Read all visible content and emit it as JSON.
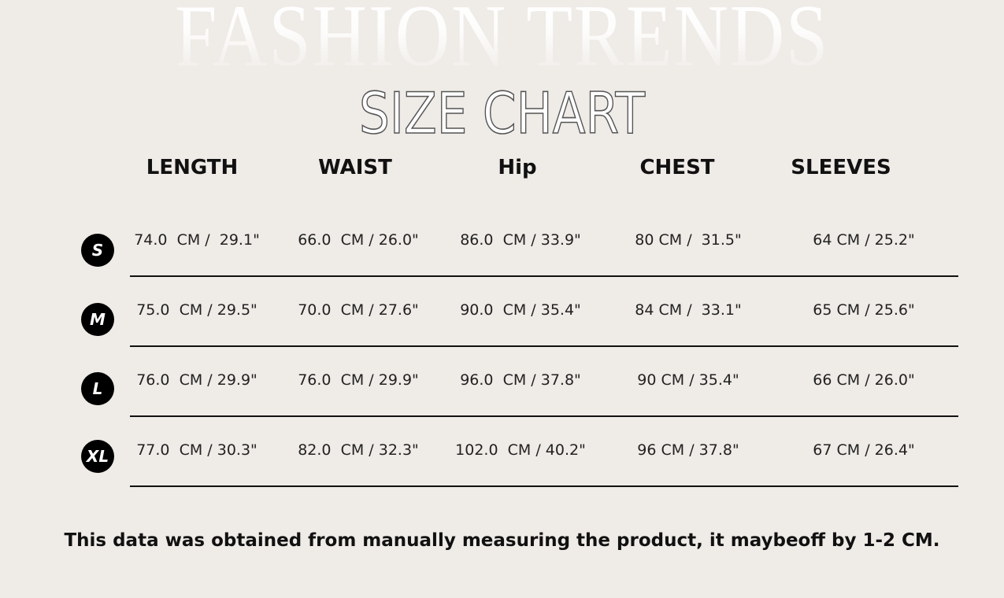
{
  "background_title": "FASHION TRENDS",
  "title": "SIZE CHART",
  "columns": [
    "LENGTH",
    "WAIST",
    "Hip",
    "CHEST",
    "SLEEVES"
  ],
  "rows": [
    {
      "size": "S",
      "values": [
        "74.0  CM /  29.1\"",
        "66.0  CM / 26.0\"",
        "86.0  CM / 33.9\"",
        "80 CM /  31.5\"",
        "64 CM / 25.2\""
      ]
    },
    {
      "size": "M",
      "values": [
        "75.0  CM / 29.5\"",
        "70.0  CM / 27.6\"",
        "90.0  CM / 35.4\"",
        "84 CM /  33.1\"",
        "65 CM / 25.6\""
      ]
    },
    {
      "size": "L",
      "values": [
        "76.0  CM / 29.9\"",
        "76.0  CM / 29.9\"",
        "96.0  CM / 37.8\"",
        "90 CM / 35.4\"",
        "66 CM / 26.0\""
      ]
    },
    {
      "size": "XL",
      "values": [
        "77.0  CM / 30.3\"",
        "82.0  CM / 32.3\"",
        "102.0  CM / 40.2\"",
        "96 CM / 37.8\"",
        "67 CM / 26.4\""
      ]
    }
  ],
  "note": "This data was obtained from manually measuring the product, it maybeoff by 1-2 CM.",
  "colors": {
    "background": "#efebe7",
    "badge": "#000000",
    "text": "#111111"
  }
}
